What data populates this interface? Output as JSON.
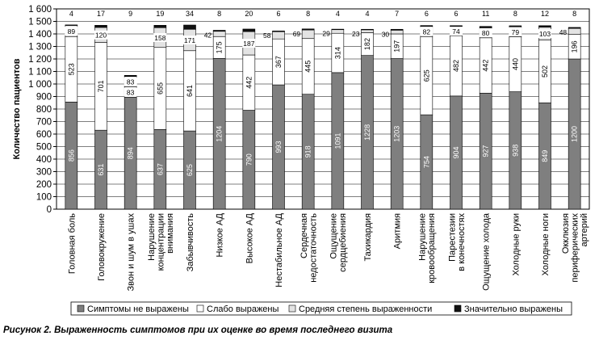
{
  "caption": "Рисунок 2. Выраженность симптомов при их оценке во время последнего визита",
  "colors": {
    "none": "#7f7f7f",
    "mild": "#ffffff",
    "moderate": "#e3e3e3",
    "severe": "#111111",
    "axis": "#000000",
    "grid": "#000000"
  },
  "chart_data": {
    "type": "bar",
    "stacked": true,
    "title": "",
    "xlabel": "",
    "ylabel": "Количество пациентов",
    "ylim": [
      0,
      1600
    ],
    "yticks": [
      0,
      100,
      200,
      300,
      400,
      500,
      600,
      700,
      800,
      900,
      1000,
      1100,
      1200,
      1300,
      1400,
      1500,
      1600
    ],
    "ytick_labels": [
      "0",
      "100",
      "200",
      "300",
      "400",
      "500",
      "600",
      "700",
      "800",
      "900",
      "1 000",
      "1 100",
      "1 200",
      "1 300",
      "1 400",
      "1 500",
      "1 600"
    ],
    "grid": true,
    "legend_position": "bottom",
    "categories": [
      [
        "Головная боль"
      ],
      [
        "Головокружение"
      ],
      [
        "Звон и шум в ушах"
      ],
      [
        "Нарушение",
        "концентрации",
        "внимания"
      ],
      [
        "Забывчивость"
      ],
      [
        "Низкое АД"
      ],
      [
        "Высокое АД"
      ],
      [
        "Нестабильное АД"
      ],
      [
        "Сердечная",
        "недостаточность"
      ],
      [
        "Ощущение",
        "сердцебиения"
      ],
      [
        "Тахикардия"
      ],
      [
        "Аритмия"
      ],
      [
        "Нарушение",
        "кровообращения"
      ],
      [
        "Парестезии",
        "в конечностях"
      ],
      [
        "Ощущение холода"
      ],
      [
        "Холодные руки"
      ],
      [
        "Холодные ноги"
      ],
      [
        "Окклюзия",
        "периферических",
        "артерий"
      ]
    ],
    "series": [
      {
        "name": "Симптомы не выражены",
        "key": "none",
        "values": [
          856,
          631,
          894,
          637,
          625,
          1204,
          790,
          993,
          918,
          1091,
          1228,
          1203,
          754,
          904,
          927,
          938,
          849,
          1200
        ]
      },
      {
        "name": "Слабо выражены",
        "key": "mild",
        "values": [
          523,
          701,
          83,
          655,
          641,
          175,
          442,
          367,
          445,
          314,
          182,
          197,
          625,
          482,
          442,
          440,
          502,
          196
        ]
      },
      {
        "name": "Средняя степень выраженности",
        "key": "moderate",
        "values": [
          89,
          120,
          83,
          158,
          171,
          42,
          187,
          58,
          69,
          29,
          23,
          30,
          82,
          74,
          80,
          79,
          103,
          48
        ]
      },
      {
        "name": "Значительно выражены",
        "key": "severe",
        "values": [
          4,
          17,
          9,
          19,
          34,
          8,
          20,
          6,
          8,
          4,
          4,
          7,
          6,
          6,
          11,
          8,
          12,
          8
        ]
      }
    ]
  }
}
